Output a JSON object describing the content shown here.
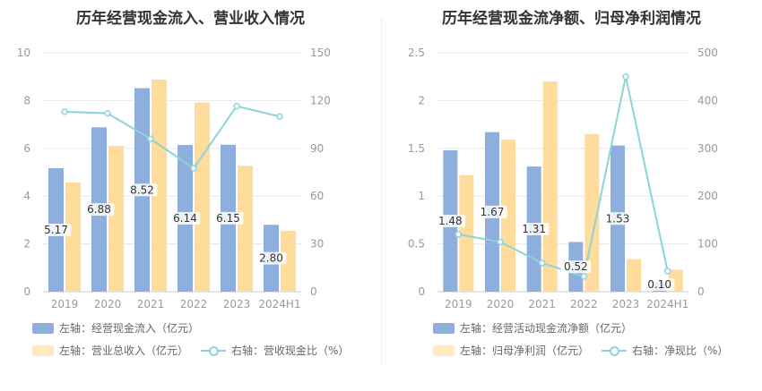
{
  "colors": {
    "bar1": "#8eaedd",
    "bar2": "#ffdc9c",
    "line": "#8dd3da",
    "grid": "#e8e8e8",
    "axis": "#999999"
  },
  "chart_data": [
    {
      "type": "bar",
      "title": "历年经营现金流入、营业收入情况",
      "categories": [
        "2019",
        "2020",
        "2021",
        "2022",
        "2023",
        "2024H1"
      ],
      "left_ylim": [
        0,
        10
      ],
      "left_ticks": [
        "0",
        "2",
        "4",
        "6",
        "8",
        "10"
      ],
      "right_ylim": [
        0,
        150
      ],
      "right_ticks": [
        "0",
        "30",
        "60",
        "90",
        "120",
        "150"
      ],
      "series": [
        {
          "name": "左轴：经营现金流入（亿元）",
          "axis": "left",
          "kind": "bar",
          "values": [
            5.17,
            6.88,
            8.52,
            6.14,
            6.15,
            2.8
          ],
          "labels": [
            "5.17",
            "6.88",
            "8.52",
            "6.14",
            "6.15",
            "2.80"
          ]
        },
        {
          "name": "左轴：营业总收入（亿元）",
          "axis": "left",
          "kind": "bar",
          "values": [
            4.57,
            6.1,
            8.88,
            7.92,
            5.27,
            2.55
          ]
        },
        {
          "name": "右轴：营收现金比（%）",
          "axis": "right",
          "kind": "line",
          "values": [
            113,
            112,
            96,
            77.5,
            116.5,
            110
          ]
        }
      ],
      "grid": true,
      "legend": "bottom"
    },
    {
      "type": "bar",
      "title": "历年经营现金流净额、归母净利润情况",
      "categories": [
        "2019",
        "2020",
        "2021",
        "2022",
        "2023",
        "2024H1"
      ],
      "left_ylim": [
        0,
        2.5
      ],
      "left_ticks": [
        "0",
        "0.5",
        "1",
        "1.5",
        "2",
        "2.5"
      ],
      "right_ylim": [
        0,
        500
      ],
      "right_ticks": [
        "0",
        "100",
        "200",
        "300",
        "400",
        "500"
      ],
      "series": [
        {
          "name": "左轴：经营活动现金流净额（亿元）",
          "axis": "left",
          "kind": "bar",
          "values": [
            1.48,
            1.67,
            1.31,
            0.52,
            1.53,
            0.1
          ],
          "labels": [
            "1.48",
            "1.67",
            "1.31",
            "0.52",
            "1.53",
            "0.10"
          ]
        },
        {
          "name": "左轴：归母净利润（亿元）",
          "axis": "left",
          "kind": "bar",
          "values": [
            1.22,
            1.59,
            2.2,
            1.65,
            0.34,
            0.23
          ]
        },
        {
          "name": "右轴：净现比（%）",
          "axis": "right",
          "kind": "line",
          "values": [
            120,
            104,
            60,
            32,
            450,
            43
          ]
        }
      ],
      "grid": true,
      "legend": "bottom"
    }
  ]
}
